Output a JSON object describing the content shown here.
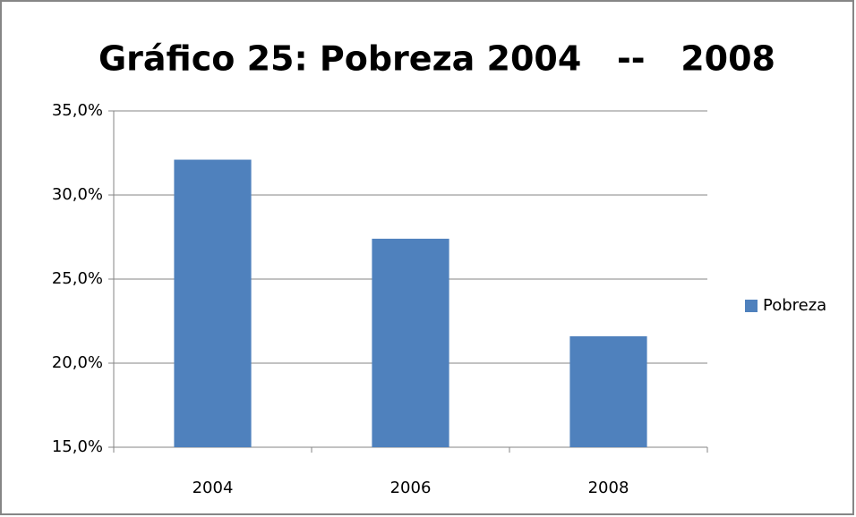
{
  "chart_data": {
    "type": "bar",
    "title": "Gráfico 25: Pobreza 2004   --   2008",
    "categories": [
      "2004",
      "2006",
      "2008"
    ],
    "series": [
      {
        "name": "Pobreza",
        "color": "#4f81bd",
        "values": [
          32.1,
          27.4,
          21.6
        ]
      }
    ],
    "ylim": [
      15,
      35
    ],
    "yticks": [
      {
        "value": 15,
        "label": "15,0%"
      },
      {
        "value": 20,
        "label": "20,0%"
      },
      {
        "value": 25,
        "label": "25,0%"
      },
      {
        "value": 30,
        "label": "30,0%"
      },
      {
        "value": 35,
        "label": "35,0%"
      }
    ],
    "grid": true,
    "legend": "right"
  }
}
